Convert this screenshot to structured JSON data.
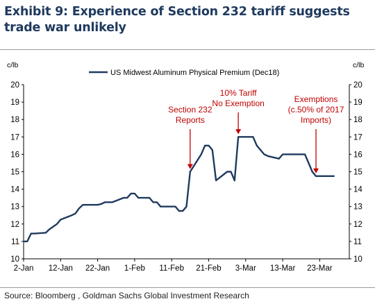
{
  "title": "Exhibit 9: Experience of Section 232 tariff suggests trade war unlikely",
  "source": "Source: Bloomberg , Goldman Sachs Global Investment Research",
  "colors": {
    "series": "#1f3a5f",
    "annotation": "#c00000",
    "title": "#1f3a5f"
  },
  "chart_data": {
    "type": "line",
    "y_unit_left": "c/lb",
    "y_unit_right": "c/lb",
    "ylim": [
      10,
      20
    ],
    "yticks": [
      10,
      11,
      12,
      13,
      14,
      15,
      16,
      17,
      18,
      19,
      20
    ],
    "xlim": [
      "2-Jan",
      "31-Mar"
    ],
    "xtick_labels": [
      "2-Jan",
      "12-Jan",
      "22-Jan",
      "1-Feb",
      "11-Feb",
      "21-Feb",
      "3-Mar",
      "13-Mar",
      "23-Mar"
    ],
    "legend": {
      "position": "top-center"
    },
    "grid": false,
    "series": [
      {
        "name": "US Midwest Aluminum Physical Premium (Dec18)",
        "color": "#1f3a5f",
        "points": [
          [
            "2-Jan",
            11.0
          ],
          [
            "3-Jan",
            11.0
          ],
          [
            "4-Jan",
            11.45
          ],
          [
            "5-Jan",
            11.45
          ],
          [
            "8-Jan",
            11.5
          ],
          [
            "9-Jan",
            11.7
          ],
          [
            "10-Jan",
            11.85
          ],
          [
            "11-Jan",
            12.0
          ],
          [
            "12-Jan",
            12.25
          ],
          [
            "15-Jan",
            12.5
          ],
          [
            "16-Jan",
            12.6
          ],
          [
            "17-Jan",
            12.9
          ],
          [
            "18-Jan",
            13.1
          ],
          [
            "19-Jan",
            13.1
          ],
          [
            "22-Jan",
            13.1
          ],
          [
            "23-Jan",
            13.15
          ],
          [
            "24-Jan",
            13.25
          ],
          [
            "25-Jan",
            13.25
          ],
          [
            "26-Jan",
            13.25
          ],
          [
            "29-Jan",
            13.5
          ],
          [
            "30-Jan",
            13.5
          ],
          [
            "31-Jan",
            13.75
          ],
          [
            "1-Feb",
            13.75
          ],
          [
            "2-Feb",
            13.5
          ],
          [
            "5-Feb",
            13.5
          ],
          [
            "6-Feb",
            13.25
          ],
          [
            "7-Feb",
            13.25
          ],
          [
            "8-Feb",
            13.0
          ],
          [
            "9-Feb",
            13.0
          ],
          [
            "12-Feb",
            13.0
          ],
          [
            "13-Feb",
            12.75
          ],
          [
            "14-Feb",
            12.75
          ],
          [
            "15-Feb",
            13.0
          ],
          [
            "16-Feb",
            15.0
          ],
          [
            "19-Feb",
            16.0
          ],
          [
            "20-Feb",
            16.5
          ],
          [
            "21-Feb",
            16.5
          ],
          [
            "22-Feb",
            16.25
          ],
          [
            "23-Feb",
            14.5
          ],
          [
            "26-Feb",
            15.0
          ],
          [
            "27-Feb",
            15.0
          ],
          [
            "28-Feb",
            14.5
          ],
          [
            "1-Mar",
            17.0
          ],
          [
            "2-Mar",
            17.0
          ],
          [
            "5-Mar",
            17.0
          ],
          [
            "6-Mar",
            16.5
          ],
          [
            "7-Mar",
            16.25
          ],
          [
            "8-Mar",
            16.0
          ],
          [
            "9-Mar",
            15.9
          ],
          [
            "12-Mar",
            15.75
          ],
          [
            "13-Mar",
            16.0
          ],
          [
            "14-Mar",
            16.0
          ],
          [
            "15-Mar",
            16.0
          ],
          [
            "16-Mar",
            16.0
          ],
          [
            "19-Mar",
            16.0
          ],
          [
            "20-Mar",
            15.5
          ],
          [
            "21-Mar",
            15.0
          ],
          [
            "22-Mar",
            14.75
          ],
          [
            "23-Mar",
            14.75
          ],
          [
            "26-Mar",
            14.75
          ],
          [
            "27-Mar",
            14.75
          ]
        ]
      }
    ],
    "annotations": [
      {
        "lines": [
          "Section 232",
          "Reports"
        ],
        "x": "16-Feb",
        "y": 15.0
      },
      {
        "lines": [
          "10% Tariff",
          "No Exemption"
        ],
        "x": "1-Mar",
        "y": 17.0
      },
      {
        "lines": [
          "Exemptions",
          "(c.50% of 2017",
          "Imports)"
        ],
        "x": "22-Mar",
        "y": 14.75
      }
    ]
  }
}
